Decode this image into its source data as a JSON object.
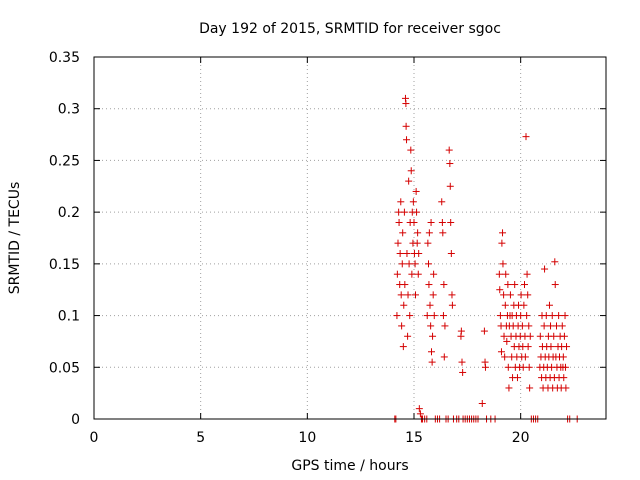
{
  "chart_data": {
    "type": "scatter",
    "title": "Day 192 of 2015, SRMTID for receiver sgoc",
    "xlabel": "GPS time / hours",
    "ylabel": "SRMTID / TECUs",
    "xlim": [
      0,
      24
    ],
    "ylim": [
      0,
      0.35
    ],
    "xticks": [
      "0",
      "5",
      "10",
      "15",
      "20"
    ],
    "xtick_values": [
      0,
      5,
      10,
      15,
      20
    ],
    "yticks": [
      "0",
      "0.05",
      "0.1",
      "0.15",
      "0.2",
      "0.25",
      "0.3",
      "0.35"
    ],
    "ytick_values": [
      0,
      0.05,
      0.1,
      0.15,
      0.2,
      0.25,
      0.3,
      0.35
    ],
    "grid": true,
    "marker": "+",
    "color": "#d40000",
    "series": [
      {
        "name": "SRMTID",
        "points": [
          [
            14.1,
            0
          ],
          [
            14.15,
            0
          ],
          [
            14.2,
            0.1
          ],
          [
            14.22,
            0.14
          ],
          [
            14.25,
            0.17
          ],
          [
            14.28,
            0.2
          ],
          [
            14.3,
            0.19
          ],
          [
            14.33,
            0.13
          ],
          [
            14.35,
            0.16
          ],
          [
            14.38,
            0.21
          ],
          [
            14.4,
            0.12
          ],
          [
            14.42,
            0.09
          ],
          [
            14.45,
            0.15
          ],
          [
            14.47,
            0.18
          ],
          [
            14.5,
            0.07
          ],
          [
            14.52,
            0.11
          ],
          [
            14.55,
            0.2
          ],
          [
            14.57,
            0.13
          ],
          [
            14.6,
            0.31
          ],
          [
            14.62,
            0.305
          ],
          [
            14.63,
            0.283
          ],
          [
            14.65,
            0.27
          ],
          [
            14.67,
            0.16
          ],
          [
            14.7,
            0.08
          ],
          [
            14.72,
            0.12
          ],
          [
            14.75,
            0.23
          ],
          [
            14.77,
            0.15
          ],
          [
            14.8,
            0.1
          ],
          [
            14.82,
            0.19
          ],
          [
            14.85,
            0.26
          ],
          [
            14.87,
            0.24
          ],
          [
            14.9,
            0.14
          ],
          [
            14.92,
            0.2
          ],
          [
            14.95,
            0.17
          ],
          [
            14.97,
            0.21
          ],
          [
            15.0,
            0.19
          ],
          [
            15.02,
            0.16
          ],
          [
            15.05,
            0.15
          ],
          [
            15.07,
            0.12
          ],
          [
            15.1,
            0.22
          ],
          [
            15.12,
            0.2
          ],
          [
            15.15,
            0.17
          ],
          [
            15.17,
            0.18
          ],
          [
            15.2,
            0.14
          ],
          [
            15.22,
            0.16
          ],
          [
            15.25,
            0.01
          ],
          [
            15.3,
            0.005
          ],
          [
            15.35,
            0
          ],
          [
            15.4,
            0
          ],
          [
            15.5,
            0
          ],
          [
            15.6,
            0
          ],
          [
            15.62,
            0.1
          ],
          [
            15.65,
            0.17
          ],
          [
            15.68,
            0.15
          ],
          [
            15.7,
            0.13
          ],
          [
            15.72,
            0.18
          ],
          [
            15.75,
            0.11
          ],
          [
            15.78,
            0.09
          ],
          [
            15.8,
            0.19
          ],
          [
            15.82,
            0.065
          ],
          [
            15.85,
            0.055
          ],
          [
            15.87,
            0.08
          ],
          [
            15.9,
            0.12
          ],
          [
            15.92,
            0.14
          ],
          [
            15.95,
            0.1
          ],
          [
            16.0,
            0
          ],
          [
            16.1,
            0
          ],
          [
            16.2,
            0
          ],
          [
            16.3,
            0.21
          ],
          [
            16.33,
            0.19
          ],
          [
            16.35,
            0.18
          ],
          [
            16.38,
            0.1
          ],
          [
            16.4,
            0.13
          ],
          [
            16.42,
            0.06
          ],
          [
            16.45,
            0.09
          ],
          [
            16.5,
            0
          ],
          [
            16.6,
            0
          ],
          [
            16.65,
            0.26
          ],
          [
            16.68,
            0.247
          ],
          [
            16.7,
            0.225
          ],
          [
            16.72,
            0.19
          ],
          [
            16.75,
            0.16
          ],
          [
            16.78,
            0.12
          ],
          [
            16.8,
            0.11
          ],
          [
            16.85,
            0
          ],
          [
            17.0,
            0
          ],
          [
            17.1,
            0
          ],
          [
            17.2,
            0.08
          ],
          [
            17.22,
            0.085
          ],
          [
            17.25,
            0.055
          ],
          [
            17.28,
            0.045
          ],
          [
            17.3,
            0
          ],
          [
            17.4,
            0
          ],
          [
            17.5,
            0
          ],
          [
            17.6,
            0
          ],
          [
            17.7,
            0
          ],
          [
            17.8,
            0
          ],
          [
            17.9,
            0
          ],
          [
            18.0,
            0
          ],
          [
            18.2,
            0.015
          ],
          [
            18.3,
            0.085
          ],
          [
            18.33,
            0.055
          ],
          [
            18.35,
            0.05
          ],
          [
            18.4,
            0
          ],
          [
            18.6,
            0
          ],
          [
            18.8,
            0
          ],
          [
            19.0,
            0.14
          ],
          [
            19.02,
            0.125
          ],
          [
            19.05,
            0.1
          ],
          [
            19.08,
            0.09
          ],
          [
            19.1,
            0.065
          ],
          [
            19.12,
            0.17
          ],
          [
            19.15,
            0.18
          ],
          [
            19.17,
            0.15
          ],
          [
            19.2,
            0.12
          ],
          [
            19.22,
            0.08
          ],
          [
            19.25,
            0.06
          ],
          [
            19.28,
            0.11
          ],
          [
            19.3,
            0.14
          ],
          [
            19.33,
            0.09
          ],
          [
            19.35,
            0.075
          ],
          [
            19.38,
            0.1
          ],
          [
            19.4,
            0.13
          ],
          [
            19.42,
            0.05
          ],
          [
            19.45,
            0.03
          ],
          [
            19.47,
            0.09
          ],
          [
            19.5,
            0.1
          ],
          [
            19.52,
            0.12
          ],
          [
            19.55,
            0.08
          ],
          [
            19.58,
            0.06
          ],
          [
            19.6,
            0.1
          ],
          [
            19.62,
            0.04
          ],
          [
            19.65,
            0.09
          ],
          [
            19.68,
            0.11
          ],
          [
            19.7,
            0.07
          ],
          [
            19.72,
            0.13
          ],
          [
            19.75,
            0.05
          ],
          [
            19.78,
            0.08
          ],
          [
            19.8,
            0.1
          ],
          [
            19.82,
            0.06
          ],
          [
            19.85,
            0.04
          ],
          [
            19.88,
            0.09
          ],
          [
            19.9,
            0.11
          ],
          [
            19.92,
            0.07
          ],
          [
            19.95,
            0.05
          ],
          [
            19.98,
            0.08
          ],
          [
            20.0,
            0.1
          ],
          [
            20.02,
            0.12
          ],
          [
            20.05,
            0.06
          ],
          [
            20.08,
            0.09
          ],
          [
            20.1,
            0.07
          ],
          [
            20.12,
            0.05
          ],
          [
            20.15,
            0.11
          ],
          [
            20.18,
            0.13
          ],
          [
            20.2,
            0.08
          ],
          [
            20.22,
            0.06
          ],
          [
            20.25,
            0.273
          ],
          [
            20.28,
            0.1
          ],
          [
            20.3,
            0.14
          ],
          [
            20.33,
            0.12
          ],
          [
            20.35,
            0.07
          ],
          [
            20.38,
            0.09
          ],
          [
            20.4,
            0.05
          ],
          [
            20.42,
            0.03
          ],
          [
            20.45,
            0.08
          ],
          [
            20.5,
            0
          ],
          [
            20.6,
            0
          ],
          [
            20.7,
            0
          ],
          [
            20.8,
            0
          ],
          [
            20.9,
            0.05
          ],
          [
            20.92,
            0.08
          ],
          [
            20.95,
            0.06
          ],
          [
            20.98,
            0.04
          ],
          [
            21.0,
            0.1
          ],
          [
            21.02,
            0.07
          ],
          [
            21.05,
            0.03
          ],
          [
            21.08,
            0.05
          ],
          [
            21.1,
            0.09
          ],
          [
            21.12,
            0.145
          ],
          [
            21.15,
            0.06
          ],
          [
            21.18,
            0.04
          ],
          [
            21.2,
            0.1
          ],
          [
            21.22,
            0.07
          ],
          [
            21.25,
            0.05
          ],
          [
            21.28,
            0.03
          ],
          [
            21.3,
            0.08
          ],
          [
            21.32,
            0.06
          ],
          [
            21.35,
            0.11
          ],
          [
            21.38,
            0.04
          ],
          [
            21.4,
            0.09
          ],
          [
            21.42,
            0.07
          ],
          [
            21.45,
            0.05
          ],
          [
            21.48,
            0.1
          ],
          [
            21.5,
            0.03
          ],
          [
            21.52,
            0.06
          ],
          [
            21.55,
            0.08
          ],
          [
            21.58,
            0.04
          ],
          [
            21.6,
            0.152
          ],
          [
            21.62,
            0.13
          ],
          [
            21.65,
            0.06
          ],
          [
            21.68,
            0.09
          ],
          [
            21.7,
            0.05
          ],
          [
            21.72,
            0.03
          ],
          [
            21.75,
            0.07
          ],
          [
            21.78,
            0.1
          ],
          [
            21.8,
            0.04
          ],
          [
            21.82,
            0.06
          ],
          [
            21.85,
            0.08
          ],
          [
            21.88,
            0.05
          ],
          [
            21.9,
            0.03
          ],
          [
            21.92,
            0.07
          ],
          [
            21.95,
            0.09
          ],
          [
            21.98,
            0.05
          ],
          [
            22.0,
            0.06
          ],
          [
            22.02,
            0.04
          ],
          [
            22.05,
            0.08
          ],
          [
            22.08,
            0.1
          ],
          [
            22.1,
            0.05
          ],
          [
            22.12,
            0.03
          ],
          [
            22.15,
            0.07
          ],
          [
            22.2,
            0.0
          ],
          [
            22.3,
            0
          ],
          [
            22.65,
            0
          ]
        ]
      }
    ]
  }
}
